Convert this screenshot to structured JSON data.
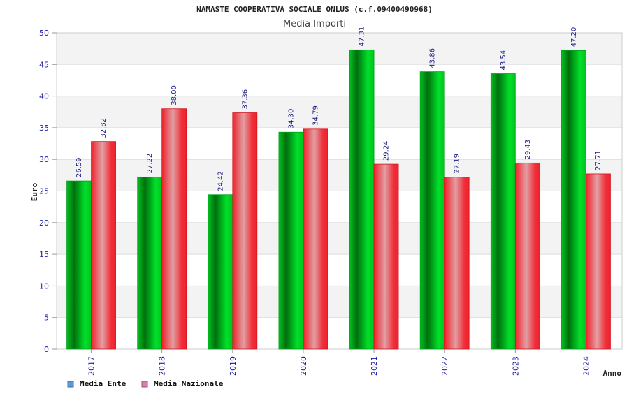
{
  "chart_data": {
    "type": "bar",
    "title": "NAMASTE COOPERATIVA SOCIALE ONLUS (c.f.09400490968)",
    "subtitle": "Media Importi",
    "xlabel": "Anno",
    "ylabel": "Euro",
    "ylim": [
      0,
      50
    ],
    "yticks": [
      "0",
      "5",
      "10",
      "15",
      "20",
      "25",
      "30",
      "35",
      "40",
      "45",
      "50"
    ],
    "grid": true,
    "legend_position": "bottom-left",
    "categories": [
      "2017",
      "2018",
      "2019",
      "2020",
      "2021",
      "2022",
      "2023",
      "2024"
    ],
    "series": [
      {
        "name": "Media Ente",
        "color": "#00c21f",
        "legend_color": "#5b9bd5",
        "values": [
          26.59,
          27.22,
          24.42,
          34.3,
          47.31,
          43.86,
          43.54,
          47.2
        ],
        "labels": [
          "26.59",
          "27.22",
          "24.42",
          "34.30",
          "47.31",
          "43.86",
          "43.54",
          "47.20"
        ]
      },
      {
        "name": "Media Nazionale",
        "color": "#f0202a",
        "legend_color": "#d67fb0",
        "values": [
          32.82,
          38.0,
          37.36,
          34.79,
          29.24,
          27.19,
          29.43,
          27.71
        ],
        "labels": [
          "32.82",
          "38.00",
          "37.36",
          "34.79",
          "29.24",
          "27.19",
          "29.43",
          "27.71"
        ]
      }
    ]
  }
}
